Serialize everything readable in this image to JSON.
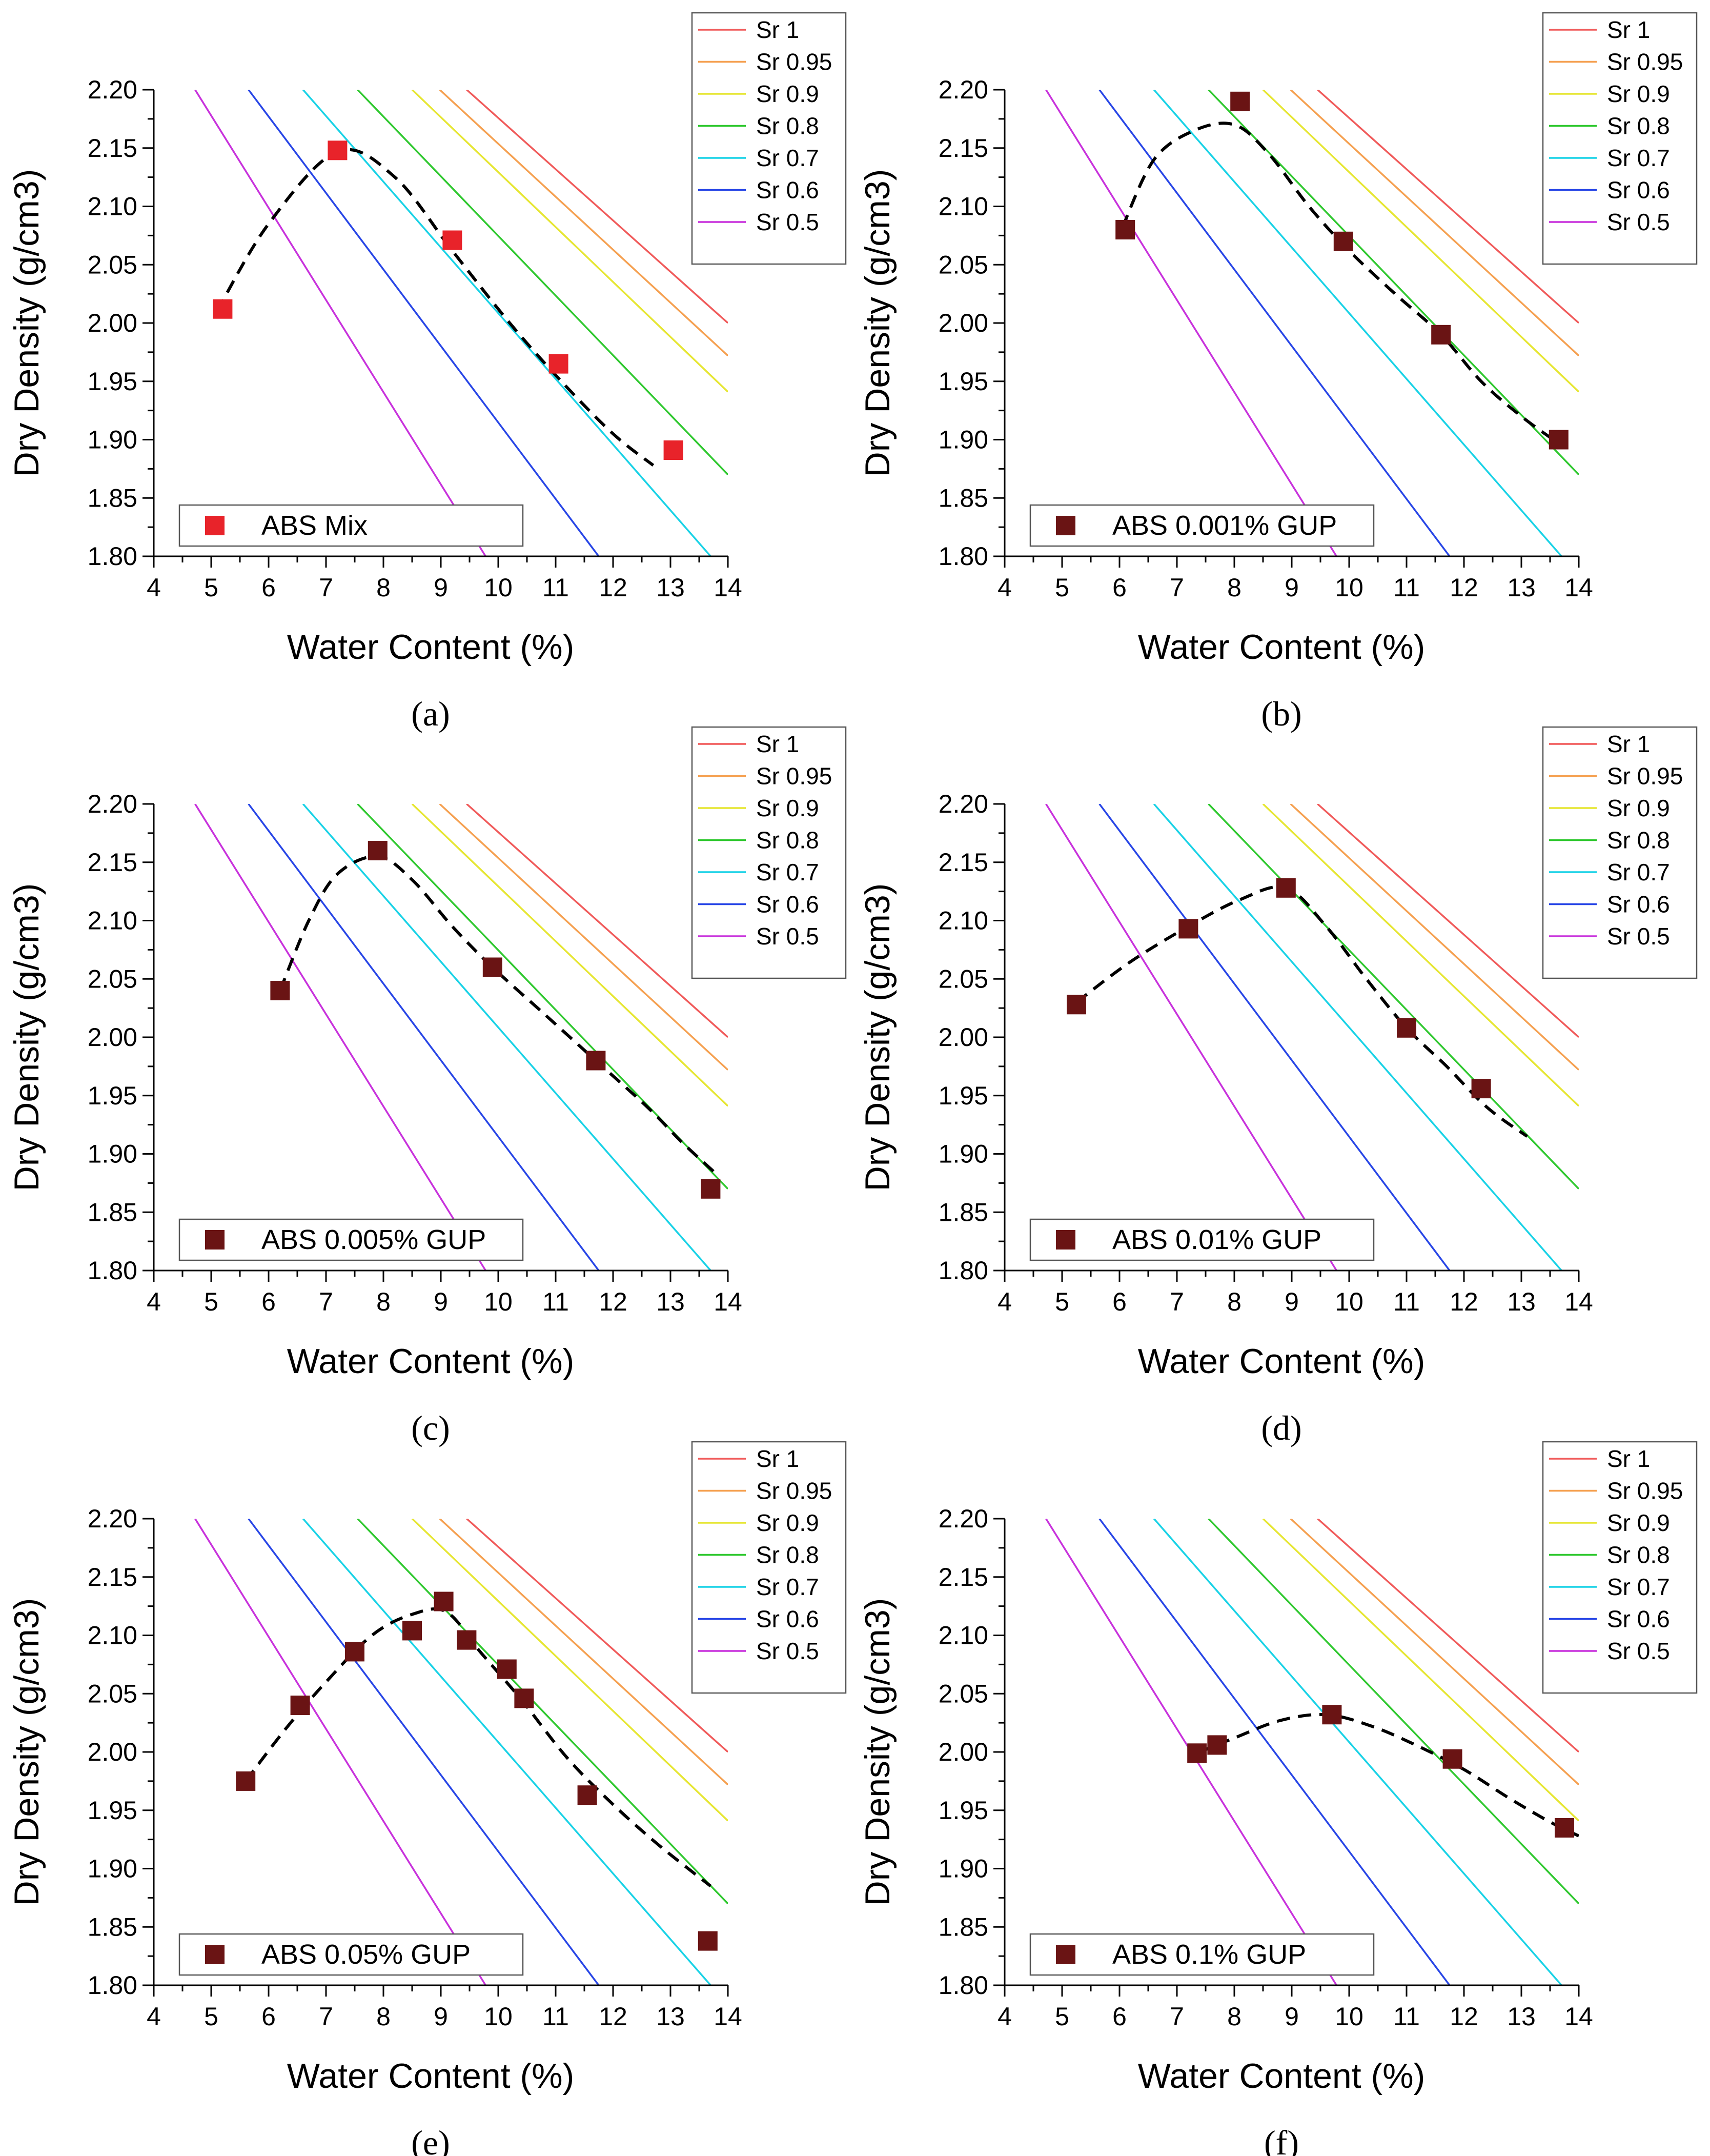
{
  "figure": {
    "sr_colors": {
      "Sr 1": "#f05a5a",
      "Sr 0.95": "#f5a050",
      "Sr 0.9": "#e6e632",
      "Sr 0.8": "#2fc82f",
      "Sr 0.7": "#19d2e6",
      "Sr 0.6": "#2846e6",
      "Sr 0.5": "#c832dc"
    },
    "marker_colors": {
      "red": "#e8232a",
      "maroon": "#6a1414"
    },
    "fit_line_color": "#000000"
  },
  "chart_data": [
    {
      "type": "line",
      "panel": "a",
      "panel_label": "(a)",
      "xlabel": "Water Content (%)",
      "ylabel": "Dry Density (g/cm3)",
      "xlim": [
        4,
        14
      ],
      "ylim": [
        1.8,
        2.2
      ],
      "xticks": [
        "4",
        "5",
        "6",
        "7",
        "8",
        "9",
        "10",
        "11",
        "12",
        "13",
        "14"
      ],
      "yticks": [
        "1.80",
        "1.85",
        "1.90",
        "1.95",
        "2.00",
        "2.05",
        "2.10",
        "2.15",
        "2.20"
      ],
      "sr_legend": [
        "Sr 1",
        "Sr 0.95",
        "Sr 0.9",
        "Sr 0.8",
        "Sr 0.7",
        "Sr 0.6",
        "Sr 0.5"
      ],
      "sr_series": [
        {
          "name": "Sr 1",
          "x": [
            9.45,
            14
          ],
          "y": [
            2.2,
            2.0
          ]
        },
        {
          "name": "Sr 0.95",
          "x": [
            8.98,
            14
          ],
          "y": [
            2.2,
            1.972
          ]
        },
        {
          "name": "Sr 0.9",
          "x": [
            8.5,
            14
          ],
          "y": [
            2.2,
            1.941
          ]
        },
        {
          "name": "Sr 0.8",
          "x": [
            7.55,
            14
          ],
          "y": [
            2.2,
            1.87
          ]
        },
        {
          "name": "Sr 0.7",
          "x": [
            6.6,
            13.7
          ],
          "y": [
            2.2,
            1.8
          ]
        },
        {
          "name": "Sr 0.6",
          "x": [
            5.65,
            11.75
          ],
          "y": [
            2.2,
            1.8
          ]
        },
        {
          "name": "Sr 0.5",
          "x": [
            4.72,
            9.78
          ],
          "y": [
            2.2,
            1.8
          ]
        }
      ],
      "series": [
        {
          "name": "ABS Mix",
          "marker": "red",
          "x": [
            5.2,
            7.2,
            9.2,
            11.05,
            13.05
          ],
          "y": [
            2.012,
            2.148,
            2.071,
            1.965,
            1.891
          ]
        }
      ],
      "fit": {
        "x": [
          5.1,
          6.0,
          7.2,
          8.2,
          9.2,
          10.2,
          11.1,
          12.0,
          12.7
        ],
        "y": [
          2.01,
          2.085,
          2.147,
          2.125,
          2.062,
          2.0,
          1.95,
          1.905,
          1.878
        ]
      }
    },
    {
      "type": "line",
      "panel": "b",
      "panel_label": "(b)",
      "xlabel": "Water Content (%)",
      "ylabel": "Dry Density (g/cm3)",
      "xlim": [
        4,
        14
      ],
      "ylim": [
        1.8,
        2.2
      ],
      "xticks": [
        "4",
        "5",
        "6",
        "7",
        "8",
        "9",
        "10",
        "11",
        "12",
        "13",
        "14"
      ],
      "yticks": [
        "1.80",
        "1.85",
        "1.90",
        "1.95",
        "2.00",
        "2.05",
        "2.10",
        "2.15",
        "2.20"
      ],
      "sr_legend": [
        "Sr 1",
        "Sr 0.95",
        "Sr 0.9",
        "Sr 0.8",
        "Sr 0.7",
        "Sr 0.6",
        "Sr 0.5"
      ],
      "sr_series": [
        {
          "name": "Sr 1",
          "x": [
            9.45,
            14
          ],
          "y": [
            2.2,
            2.0
          ]
        },
        {
          "name": "Sr 0.95",
          "x": [
            8.98,
            14
          ],
          "y": [
            2.2,
            1.972
          ]
        },
        {
          "name": "Sr 0.9",
          "x": [
            8.5,
            14
          ],
          "y": [
            2.2,
            1.941
          ]
        },
        {
          "name": "Sr 0.8",
          "x": [
            7.55,
            14
          ],
          "y": [
            2.2,
            1.87
          ]
        },
        {
          "name": "Sr 0.7",
          "x": [
            6.6,
            13.7
          ],
          "y": [
            2.2,
            1.8
          ]
        },
        {
          "name": "Sr 0.6",
          "x": [
            5.65,
            11.75
          ],
          "y": [
            2.2,
            1.8
          ]
        },
        {
          "name": "Sr 0.5",
          "x": [
            4.72,
            9.78
          ],
          "y": [
            2.2,
            1.8
          ]
        }
      ],
      "series": [
        {
          "name": "ABS 0.001% GUP",
          "marker": "maroon",
          "x": [
            6.1,
            8.1,
            9.9,
            11.6,
            13.65
          ],
          "y": [
            2.08,
            2.19,
            2.07,
            1.99,
            1.9
          ]
        }
      ],
      "fit": {
        "x": [
          6.05,
          6.6,
          7.3,
          8.0,
          8.6,
          9.3,
          10.0,
          10.8,
          11.6,
          12.3,
          13.0,
          13.7
        ],
        "y": [
          2.082,
          2.14,
          2.165,
          2.17,
          2.145,
          2.1,
          2.062,
          2.025,
          1.99,
          1.95,
          1.92,
          1.895
        ]
      }
    },
    {
      "type": "line",
      "panel": "c",
      "panel_label": "(c)",
      "xlabel": "Water Content (%)",
      "ylabel": "Dry Density (g/cm3)",
      "xlim": [
        4,
        14
      ],
      "ylim": [
        1.8,
        2.2
      ],
      "xticks": [
        "4",
        "5",
        "6",
        "7",
        "8",
        "9",
        "10",
        "11",
        "12",
        "13",
        "14"
      ],
      "yticks": [
        "1.80",
        "1.85",
        "1.90",
        "1.95",
        "2.00",
        "2.05",
        "2.10",
        "2.15",
        "2.20"
      ],
      "sr_legend": [
        "Sr 1",
        "Sr 0.95",
        "Sr 0.9",
        "Sr 0.8",
        "Sr 0.7",
        "Sr 0.6",
        "Sr 0.5"
      ],
      "sr_series": [
        {
          "name": "Sr 1",
          "x": [
            9.45,
            14
          ],
          "y": [
            2.2,
            2.0
          ]
        },
        {
          "name": "Sr 0.95",
          "x": [
            8.98,
            14
          ],
          "y": [
            2.2,
            1.972
          ]
        },
        {
          "name": "Sr 0.9",
          "x": [
            8.5,
            14
          ],
          "y": [
            2.2,
            1.941
          ]
        },
        {
          "name": "Sr 0.8",
          "x": [
            7.55,
            14
          ],
          "y": [
            2.2,
            1.87
          ]
        },
        {
          "name": "Sr 0.7",
          "x": [
            6.6,
            13.7
          ],
          "y": [
            2.2,
            1.8
          ]
        },
        {
          "name": "Sr 0.6",
          "x": [
            5.65,
            11.75
          ],
          "y": [
            2.2,
            1.8
          ]
        },
        {
          "name": "Sr 0.5",
          "x": [
            4.72,
            9.78
          ],
          "y": [
            2.2,
            1.8
          ]
        }
      ],
      "series": [
        {
          "name": "ABS 0.005% GUP",
          "marker": "maroon",
          "x": [
            6.2,
            7.9,
            9.9,
            11.7,
            13.7
          ],
          "y": [
            2.04,
            2.16,
            2.06,
            1.98,
            1.87
          ]
        }
      ],
      "fit": {
        "x": [
          6.2,
          6.7,
          7.2,
          7.9,
          8.5,
          9.2,
          9.9,
          10.8,
          11.7,
          12.6,
          13.2,
          13.75
        ],
        "y": [
          2.04,
          2.1,
          2.14,
          2.155,
          2.135,
          2.095,
          2.06,
          2.02,
          1.98,
          1.94,
          1.91,
          1.885
        ]
      }
    },
    {
      "type": "line",
      "panel": "d",
      "panel_label": "(d)",
      "xlabel": "Water Content (%)",
      "ylabel": "Dry Density (g/cm3)",
      "xlim": [
        4,
        14
      ],
      "ylim": [
        1.8,
        2.2
      ],
      "xticks": [
        "4",
        "5",
        "6",
        "7",
        "8",
        "9",
        "10",
        "11",
        "12",
        "13",
        "14"
      ],
      "yticks": [
        "1.80",
        "1.85",
        "1.90",
        "1.95",
        "2.00",
        "2.05",
        "2.10",
        "2.15",
        "2.20"
      ],
      "sr_legend": [
        "Sr 1",
        "Sr 0.95",
        "Sr 0.9",
        "Sr 0.8",
        "Sr 0.7",
        "Sr 0.6",
        "Sr 0.5"
      ],
      "sr_series": [
        {
          "name": "Sr 1",
          "x": [
            9.45,
            14
          ],
          "y": [
            2.2,
            2.0
          ]
        },
        {
          "name": "Sr 0.95",
          "x": [
            8.98,
            14
          ],
          "y": [
            2.2,
            1.972
          ]
        },
        {
          "name": "Sr 0.9",
          "x": [
            8.5,
            14
          ],
          "y": [
            2.2,
            1.941
          ]
        },
        {
          "name": "Sr 0.8",
          "x": [
            7.55,
            14
          ],
          "y": [
            2.2,
            1.87
          ]
        },
        {
          "name": "Sr 0.7",
          "x": [
            6.6,
            13.7
          ],
          "y": [
            2.2,
            1.8
          ]
        },
        {
          "name": "Sr 0.6",
          "x": [
            5.65,
            11.75
          ],
          "y": [
            2.2,
            1.8
          ]
        },
        {
          "name": "Sr 0.5",
          "x": [
            4.72,
            9.78
          ],
          "y": [
            2.2,
            1.8
          ]
        }
      ],
      "series": [
        {
          "name": "ABS 0.01% GUP",
          "marker": "maroon",
          "x": [
            5.25,
            7.2,
            8.9,
            11.0,
            12.3
          ],
          "y": [
            2.028,
            2.093,
            2.128,
            2.008,
            1.956
          ]
        }
      ],
      "fit": {
        "x": [
          5.25,
          6.2,
          7.2,
          8.1,
          8.9,
          9.6,
          10.3,
          11.0,
          11.7,
          12.4,
          13.1
        ],
        "y": [
          2.03,
          2.065,
          2.095,
          2.118,
          2.128,
          2.095,
          2.05,
          2.008,
          1.975,
          1.94,
          1.915
        ]
      }
    },
    {
      "type": "line",
      "panel": "e",
      "panel_label": "(e)",
      "xlabel": "Water Content (%)",
      "ylabel": "Dry Density (g/cm3)",
      "xlim": [
        4,
        14
      ],
      "ylim": [
        1.8,
        2.2
      ],
      "xticks": [
        "4",
        "5",
        "6",
        "7",
        "8",
        "9",
        "10",
        "11",
        "12",
        "13",
        "14"
      ],
      "yticks": [
        "1.80",
        "1.85",
        "1.90",
        "1.95",
        "2.00",
        "2.05",
        "2.10",
        "2.15",
        "2.20"
      ],
      "sr_legend": [
        "Sr 1",
        "Sr 0.95",
        "Sr 0.9",
        "Sr 0.8",
        "Sr 0.7",
        "Sr 0.6",
        "Sr 0.5"
      ],
      "sr_series": [
        {
          "name": "Sr 1",
          "x": [
            9.45,
            14
          ],
          "y": [
            2.2,
            2.0
          ]
        },
        {
          "name": "Sr 0.95",
          "x": [
            8.98,
            14
          ],
          "y": [
            2.2,
            1.972
          ]
        },
        {
          "name": "Sr 0.9",
          "x": [
            8.5,
            14
          ],
          "y": [
            2.2,
            1.941
          ]
        },
        {
          "name": "Sr 0.8",
          "x": [
            7.55,
            14
          ],
          "y": [
            2.2,
            1.87
          ]
        },
        {
          "name": "Sr 0.7",
          "x": [
            6.6,
            13.7
          ],
          "y": [
            2.2,
            1.8
          ]
        },
        {
          "name": "Sr 0.6",
          "x": [
            5.65,
            11.75
          ],
          "y": [
            2.2,
            1.8
          ]
        },
        {
          "name": "Sr 0.5",
          "x": [
            4.72,
            9.78
          ],
          "y": [
            2.2,
            1.8
          ]
        }
      ],
      "series": [
        {
          "name": "ABS 0.05% GUP",
          "marker": "maroon",
          "x": [
            5.6,
            6.55,
            7.5,
            8.5,
            9.05,
            9.45,
            10.15,
            10.45,
            11.55,
            13.65
          ],
          "y": [
            1.975,
            2.04,
            2.086,
            2.104,
            2.129,
            2.096,
            2.071,
            2.046,
            1.963,
            1.838
          ]
        }
      ],
      "fit": {
        "x": [
          5.6,
          6.3,
          7.0,
          7.8,
          8.5,
          9.1,
          9.7,
          10.4,
          11.2,
          12.0,
          12.8,
          13.7
        ],
        "y": [
          1.975,
          2.02,
          2.06,
          2.1,
          2.118,
          2.12,
          2.085,
          2.045,
          1.995,
          1.955,
          1.92,
          1.885
        ]
      }
    },
    {
      "type": "line",
      "panel": "f",
      "panel_label": "(f)",
      "xlabel": "Water Content (%)",
      "ylabel": "Dry Density (g/cm3)",
      "xlim": [
        4,
        14
      ],
      "ylim": [
        1.8,
        2.2
      ],
      "xticks": [
        "4",
        "5",
        "6",
        "7",
        "8",
        "9",
        "10",
        "11",
        "12",
        "13",
        "14"
      ],
      "yticks": [
        "1.80",
        "1.85",
        "1.90",
        "1.95",
        "2.00",
        "2.05",
        "2.10",
        "2.15",
        "2.20"
      ],
      "sr_legend": [
        "Sr 1",
        "Sr 0.95",
        "Sr 0.9",
        "Sr 0.8",
        "Sr 0.7",
        "Sr 0.6",
        "Sr 0.5"
      ],
      "sr_series": [
        {
          "name": "Sr 1",
          "x": [
            9.45,
            14
          ],
          "y": [
            2.2,
            2.0
          ]
        },
        {
          "name": "Sr 0.95",
          "x": [
            8.98,
            14
          ],
          "y": [
            2.2,
            1.972
          ]
        },
        {
          "name": "Sr 0.9",
          "x": [
            8.5,
            14
          ],
          "y": [
            2.2,
            1.941
          ]
        },
        {
          "name": "Sr 0.8",
          "x": [
            7.55,
            14
          ],
          "y": [
            2.2,
            1.87
          ]
        },
        {
          "name": "Sr 0.7",
          "x": [
            6.6,
            13.7
          ],
          "y": [
            2.2,
            1.8
          ]
        },
        {
          "name": "Sr 0.6",
          "x": [
            5.65,
            11.75
          ],
          "y": [
            2.2,
            1.8
          ]
        },
        {
          "name": "Sr 0.5",
          "x": [
            4.72,
            9.78
          ],
          "y": [
            2.2,
            1.8
          ]
        }
      ],
      "series": [
        {
          "name": "ABS 0.1% GUP",
          "marker": "maroon",
          "x": [
            7.35,
            7.7,
            9.7,
            11.8,
            13.75
          ],
          "y": [
            1.999,
            2.006,
            2.032,
            1.994,
            1.935
          ]
        }
      ],
      "fit": {
        "x": [
          7.35,
          8.0,
          8.8,
          9.6,
          10.4,
          11.2,
          12.0,
          12.8,
          13.5,
          14.0
        ],
        "y": [
          1.999,
          2.012,
          2.027,
          2.032,
          2.022,
          2.005,
          1.985,
          1.96,
          1.94,
          1.928
        ]
      }
    }
  ]
}
